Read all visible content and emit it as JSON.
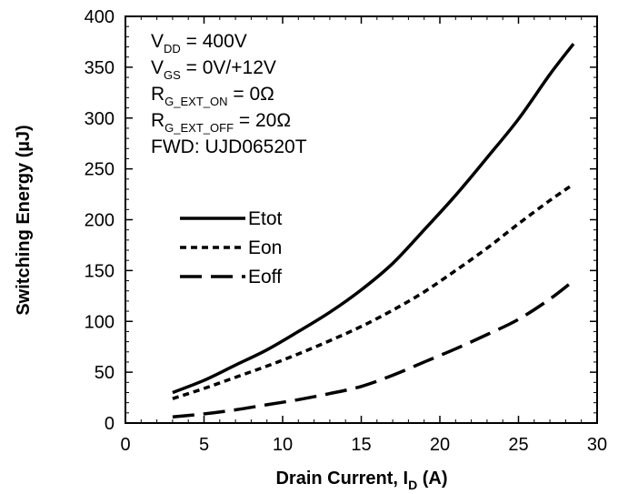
{
  "chart_data": {
    "type": "line",
    "xlabel_main": "Drain Current, I",
    "xlabel_sub": "D",
    "xlabel_unit": " (A)",
    "ylabel": "Switching Energy (µJ)",
    "xlim": [
      0,
      30
    ],
    "ylim": [
      0,
      400
    ],
    "x_ticks": [
      "0",
      "5",
      "10",
      "15",
      "20",
      "25",
      "30"
    ],
    "y_ticks": [
      "0",
      "50",
      "100",
      "150",
      "200",
      "250",
      "300",
      "350",
      "400"
    ],
    "grid": false,
    "legend_placement": "upper-left",
    "annotations": [
      {
        "main": "V",
        "sub": "DD",
        "rest": " = 400V"
      },
      {
        "main": "V",
        "sub": "GS",
        "rest": " = 0V/+12V"
      },
      {
        "main": "R",
        "sub": "G_EXT_ON",
        "rest": " = 0Ω"
      },
      {
        "main": "R",
        "sub": "G_EXT_OFF",
        "rest": " = 20Ω"
      },
      {
        "main": "FWD: UJD06520T",
        "sub": "",
        "rest": ""
      }
    ],
    "series": [
      {
        "name": "Etot",
        "dash": "solid",
        "x": [
          3,
          5,
          7,
          9,
          11,
          13,
          15,
          17,
          19,
          21,
          23,
          25,
          27,
          28.5
        ],
        "y": [
          30,
          42,
          57,
          72,
          90,
          109,
          131,
          157,
          190,
          224,
          261,
          299,
          343,
          373
        ]
      },
      {
        "name": "Eon",
        "dash": "short",
        "x": [
          3,
          5,
          7,
          9,
          11,
          13,
          15,
          17,
          19,
          21,
          23,
          25,
          27,
          28.5
        ],
        "y": [
          24,
          34,
          45,
          56,
          68,
          81,
          95,
          111,
          129,
          150,
          172,
          196,
          219,
          235
        ]
      },
      {
        "name": "Eoff",
        "dash": "long",
        "x": [
          3,
          5,
          7,
          9,
          11,
          13,
          15,
          17,
          19,
          21,
          23,
          25,
          27,
          28.5
        ],
        "y": [
          6,
          9,
          13,
          18,
          23,
          29,
          36,
          47,
          60,
          73,
          87,
          102,
          122,
          140
        ]
      }
    ]
  }
}
